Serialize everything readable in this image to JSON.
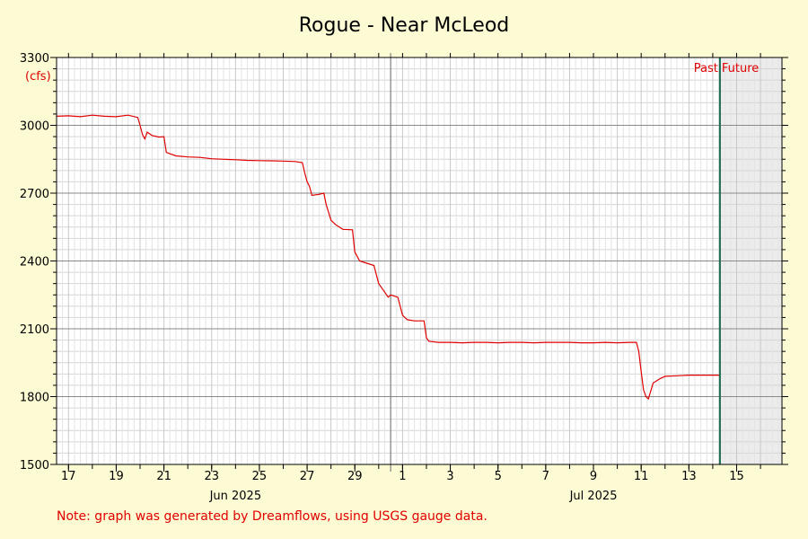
{
  "chart_data": {
    "type": "line",
    "title": "Rogue - Near McLeod",
    "ylabel": "(cfs)",
    "ylim": [
      1500,
      3300
    ],
    "yticks": [
      1500,
      1800,
      2100,
      2400,
      2700,
      3000,
      3300
    ],
    "xlim": [
      16.5,
      46.9
    ],
    "xticks": [
      {
        "x": 17,
        "label": "17"
      },
      {
        "x": 19,
        "label": "19"
      },
      {
        "x": 21,
        "label": "21"
      },
      {
        "x": 23,
        "label": "23"
      },
      {
        "x": 25,
        "label": "25"
      },
      {
        "x": 27,
        "label": "27"
      },
      {
        "x": 29,
        "label": "29"
      },
      {
        "x": 31,
        "label": "1"
      },
      {
        "x": 33,
        "label": "3"
      },
      {
        "x": 35,
        "label": "5"
      },
      {
        "x": 37,
        "label": "7"
      },
      {
        "x": 39,
        "label": "9"
      },
      {
        "x": 41,
        "label": "11"
      },
      {
        "x": 43,
        "label": "13"
      },
      {
        "x": 45,
        "label": "15"
      }
    ],
    "month_labels": [
      {
        "x": 24,
        "label": "Jun 2025"
      },
      {
        "x": 39,
        "label": "Jul 2025"
      }
    ],
    "month_boundary": 30.5,
    "now": 44.3,
    "past_label": "Past",
    "future_label": "Future",
    "grid": true,
    "series": [
      {
        "color": "#e00000",
        "x": [
          16.5,
          17.0,
          17.5,
          18.0,
          18.5,
          19.0,
          19.5,
          19.9,
          20.0,
          20.1,
          20.2,
          20.3,
          20.5,
          20.8,
          21.0,
          21.1,
          21.5,
          22.0,
          22.5,
          23.0,
          23.5,
          24.0,
          24.5,
          25.0,
          25.5,
          26.0,
          26.5,
          26.8,
          26.9,
          27.0,
          27.1,
          27.2,
          27.5,
          27.7,
          27.8,
          28.0,
          28.2,
          28.5,
          28.9,
          29.0,
          29.2,
          29.5,
          29.8,
          30.0,
          30.2,
          30.4,
          30.5,
          30.8,
          31.0,
          31.2,
          31.5,
          31.9,
          32.0,
          32.1,
          32.5,
          33.0,
          33.5,
          34.0,
          34.5,
          35.0,
          35.5,
          36.0,
          36.5,
          37.0,
          37.5,
          38.0,
          38.5,
          39.0,
          39.5,
          40.0,
          40.5,
          40.8,
          40.9,
          41.0,
          41.1,
          41.2,
          41.3,
          41.5,
          41.8,
          42.0,
          42.5,
          43.0,
          43.5,
          44.0,
          44.3
        ],
        "values": [
          3040,
          3042,
          3038,
          3045,
          3040,
          3038,
          3045,
          3035,
          3000,
          2960,
          2940,
          2970,
          2955,
          2948,
          2950,
          2880,
          2865,
          2860,
          2858,
          2852,
          2850,
          2848,
          2845,
          2844,
          2843,
          2842,
          2840,
          2835,
          2790,
          2750,
          2730,
          2690,
          2695,
          2700,
          2650,
          2580,
          2560,
          2540,
          2538,
          2440,
          2400,
          2390,
          2380,
          2300,
          2270,
          2240,
          2250,
          2240,
          2160,
          2140,
          2135,
          2135,
          2060,
          2045,
          2040,
          2040,
          2038,
          2040,
          2040,
          2038,
          2040,
          2040,
          2038,
          2040,
          2040,
          2040,
          2038,
          2038,
          2040,
          2038,
          2040,
          2040,
          2000,
          1910,
          1830,
          1800,
          1790,
          1860,
          1880,
          1890,
          1892,
          1895,
          1895,
          1895,
          1895
        ]
      }
    ]
  },
  "note": "Note: graph was generated by Dreamflows, using USGS gauge data."
}
